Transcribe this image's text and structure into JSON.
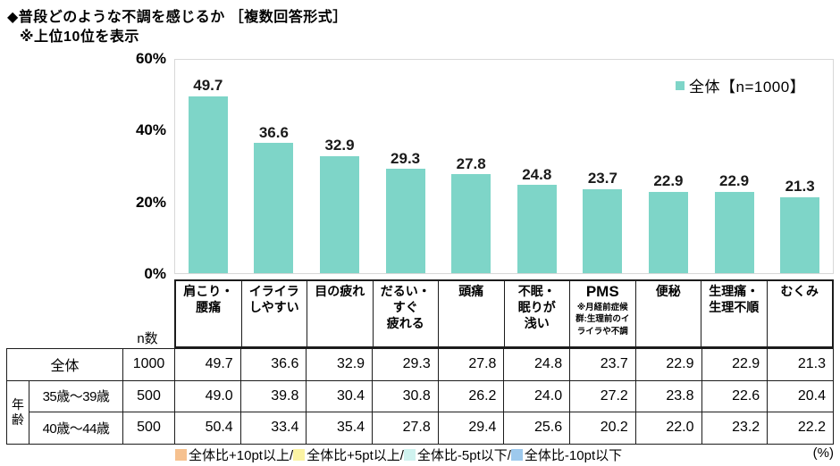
{
  "header": {
    "title": "◆普段どのような不調を感じるか ［複数回答形式］",
    "subtitle": "※上位10位を表示"
  },
  "colors": {
    "bar": "#7ED5C8",
    "plus10": "#F6C18F",
    "plus5": "#FBF3A3",
    "minus5": "#CFF2EF",
    "minus10": "#9DC9ED"
  },
  "chart_data": {
    "type": "bar",
    "title": "普段どのような不調を感じるか（上位10位）",
    "categories": [
      {
        "label": "肩こり・\n腰痛",
        "note": ""
      },
      {
        "label": "イライラ\nしやすい",
        "note": ""
      },
      {
        "label": "目の疲れ",
        "note": ""
      },
      {
        "label": "だるい・\nすぐ\n疲れる",
        "note": ""
      },
      {
        "label": "頭痛",
        "note": ""
      },
      {
        "label": "不眠・\n眠りが\n浅い",
        "note": ""
      },
      {
        "label": "PMS",
        "note": "※月経前症候群:生理前のイライラや不調"
      },
      {
        "label": "便秘",
        "note": ""
      },
      {
        "label": "生理痛・\n生理不順",
        "note": ""
      },
      {
        "label": "むくみ",
        "note": ""
      }
    ],
    "series": [
      {
        "name": "全体【n=1000】",
        "values": [
          49.7,
          36.6,
          32.9,
          29.3,
          27.8,
          24.8,
          23.7,
          22.9,
          22.9,
          21.3
        ]
      }
    ],
    "ylim": [
      0,
      60
    ],
    "yticks": [
      {
        "value": 60,
        "label": "60%"
      },
      {
        "value": 40,
        "label": "40%"
      },
      {
        "value": 20,
        "label": "20%"
      },
      {
        "value": 0,
        "label": "0%"
      }
    ],
    "grid": false,
    "legend_position": "top-right",
    "bar_color": "#7ED5C8"
  },
  "chart_legend": {
    "label": "全体【n=1000】"
  },
  "table": {
    "n_header": "n数",
    "rows": [
      {
        "group": "",
        "label": "全体",
        "n": "1000",
        "values": [
          "49.7",
          "36.6",
          "32.9",
          "29.3",
          "27.8",
          "24.8",
          "23.7",
          "22.9",
          "22.9",
          "21.3"
        ]
      },
      {
        "group": "年齢",
        "label": "35歳〜39歳",
        "n": "500",
        "values": [
          "49.0",
          "39.8",
          "30.4",
          "30.8",
          "26.2",
          "24.0",
          "27.2",
          "23.8",
          "22.6",
          "20.4"
        ]
      },
      {
        "group": "",
        "label": "40歳〜44歳",
        "n": "500",
        "values": [
          "50.4",
          "33.4",
          "35.4",
          "27.8",
          "29.4",
          "25.6",
          "20.2",
          "22.0",
          "23.2",
          "22.2"
        ]
      }
    ]
  },
  "bottom_legend": {
    "items": [
      {
        "color": "#F6C18F",
        "label": "全体比+10pt以上/"
      },
      {
        "color": "#FBF3A3",
        "label": "全体比+5pt以上/"
      },
      {
        "color": "#CFF2EF",
        "label": "全体比-5pt以下/"
      },
      {
        "color": "#9DC9ED",
        "label": "全体比-10pt以下"
      }
    ],
    "unit": "(%)"
  }
}
